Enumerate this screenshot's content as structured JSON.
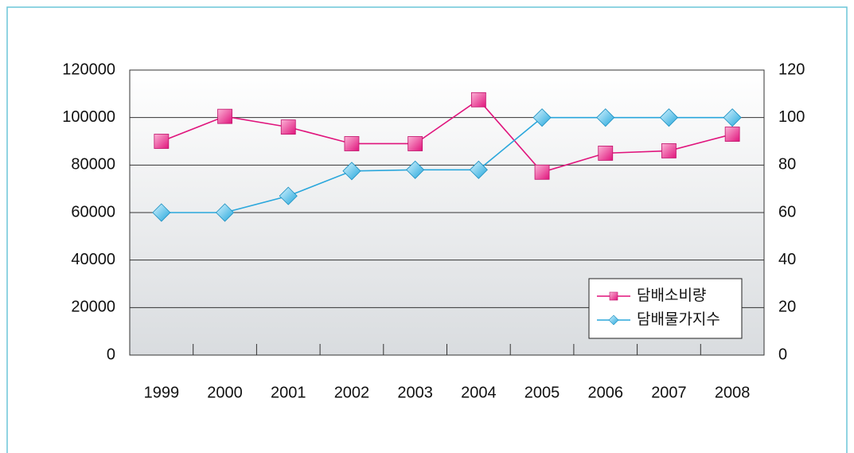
{
  "chart_data": {
    "type": "line",
    "categories": [
      "1999",
      "2000",
      "2001",
      "2002",
      "2003",
      "2004",
      "2005",
      "2006",
      "2007",
      "2008"
    ],
    "series": [
      {
        "name": "담배소비량",
        "color": "#e0147c",
        "axis": "y",
        "values": [
          90000,
          100500,
          96000,
          89000,
          89000,
          107500,
          77000,
          85000,
          86000,
          93000
        ]
      },
      {
        "name": "담배물가지수",
        "color": "#2aa7dc",
        "axis": "y2",
        "values": [
          60,
          60,
          67,
          77.5,
          78,
          78,
          100,
          100,
          100,
          100
        ]
      }
    ],
    "ylim": [
      0,
      120000
    ],
    "yticks": [
      0,
      20000,
      40000,
      60000,
      80000,
      100000,
      120000
    ],
    "y2lim": [
      0,
      120
    ],
    "y2ticks": [
      0,
      20,
      40,
      60,
      80,
      100,
      120
    ],
    "grid": true,
    "legend": "lower right"
  }
}
